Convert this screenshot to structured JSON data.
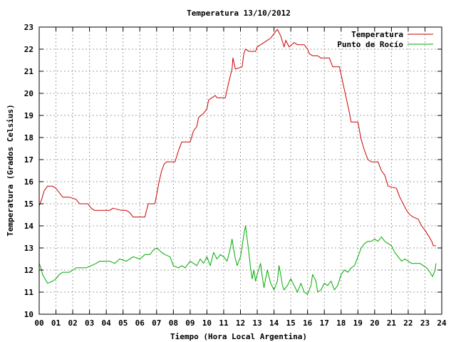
{
  "chart_data": {
    "type": "line",
    "title": "Temperatura 13/10/2012",
    "xlabel": "Tiempo (Hora Local Argentina)",
    "ylabel": "Temperatura (Grados Celsius)",
    "xlim": [
      0,
      24
    ],
    "ylim": [
      10,
      23
    ],
    "x_ticks": [
      "00",
      "01",
      "02",
      "03",
      "04",
      "05",
      "06",
      "07",
      "08",
      "09",
      "10",
      "11",
      "12",
      "13",
      "14",
      "15",
      "16",
      "17",
      "18",
      "19",
      "20",
      "21",
      "22",
      "23",
      "24"
    ],
    "y_ticks": [
      "10",
      "11",
      "12",
      "13",
      "14",
      "15",
      "16",
      "17",
      "18",
      "19",
      "20",
      "21",
      "22",
      "23"
    ],
    "grid": true,
    "legend_position": "top-right",
    "series": [
      {
        "name": "Temperatura",
        "color": "#cc0000",
        "points": [
          [
            0.0,
            14.9
          ],
          [
            0.15,
            15.2
          ],
          [
            0.3,
            15.6
          ],
          [
            0.5,
            15.8
          ],
          [
            0.8,
            15.8
          ],
          [
            1.0,
            15.7
          ],
          [
            1.2,
            15.5
          ],
          [
            1.4,
            15.3
          ],
          [
            1.8,
            15.3
          ],
          [
            2.2,
            15.2
          ],
          [
            2.4,
            15.0
          ],
          [
            2.9,
            15.0
          ],
          [
            3.1,
            14.8
          ],
          [
            3.3,
            14.7
          ],
          [
            3.9,
            14.7
          ],
          [
            4.2,
            14.7
          ],
          [
            4.4,
            14.8
          ],
          [
            4.9,
            14.7
          ],
          [
            5.2,
            14.7
          ],
          [
            5.4,
            14.6
          ],
          [
            5.6,
            14.4
          ],
          [
            6.0,
            14.4
          ],
          [
            6.3,
            14.4
          ],
          [
            6.4,
            14.7
          ],
          [
            6.5,
            15.0
          ],
          [
            6.9,
            15.0
          ],
          [
            7.0,
            15.4
          ],
          [
            7.15,
            16.0
          ],
          [
            7.3,
            16.5
          ],
          [
            7.45,
            16.8
          ],
          [
            7.6,
            16.9
          ],
          [
            8.1,
            16.9
          ],
          [
            8.3,
            17.4
          ],
          [
            8.5,
            17.8
          ],
          [
            9.0,
            17.8
          ],
          [
            9.2,
            18.3
          ],
          [
            9.4,
            18.5
          ],
          [
            9.5,
            18.9
          ],
          [
            9.8,
            19.1
          ],
          [
            10.0,
            19.3
          ],
          [
            10.1,
            19.7
          ],
          [
            10.3,
            19.8
          ],
          [
            10.5,
            19.9
          ],
          [
            10.6,
            19.8
          ],
          [
            11.1,
            19.8
          ],
          [
            11.3,
            20.5
          ],
          [
            11.5,
            21.1
          ],
          [
            11.55,
            21.6
          ],
          [
            11.7,
            21.1
          ],
          [
            12.1,
            21.2
          ],
          [
            12.2,
            21.8
          ],
          [
            12.3,
            22.0
          ],
          [
            12.5,
            21.9
          ],
          [
            12.9,
            21.9
          ],
          [
            13.0,
            22.1
          ],
          [
            13.2,
            22.2
          ],
          [
            13.4,
            22.3
          ],
          [
            13.6,
            22.4
          ],
          [
            13.8,
            22.5
          ],
          [
            14.0,
            22.7
          ],
          [
            14.2,
            22.9
          ],
          [
            14.4,
            22.6
          ],
          [
            14.6,
            22.1
          ],
          [
            14.7,
            22.4
          ],
          [
            14.9,
            22.1
          ],
          [
            15.2,
            22.3
          ],
          [
            15.4,
            22.2
          ],
          [
            15.8,
            22.2
          ],
          [
            16.0,
            22.0
          ],
          [
            16.1,
            21.8
          ],
          [
            16.3,
            21.7
          ],
          [
            16.6,
            21.7
          ],
          [
            16.8,
            21.6
          ],
          [
            17.3,
            21.6
          ],
          [
            17.5,
            21.2
          ],
          [
            17.9,
            21.2
          ],
          [
            18.1,
            20.5
          ],
          [
            18.3,
            19.8
          ],
          [
            18.5,
            19.1
          ],
          [
            18.6,
            18.7
          ],
          [
            19.0,
            18.7
          ],
          [
            19.2,
            17.9
          ],
          [
            19.4,
            17.4
          ],
          [
            19.6,
            17.0
          ],
          [
            19.8,
            16.9
          ],
          [
            20.2,
            16.9
          ],
          [
            20.4,
            16.5
          ],
          [
            20.6,
            16.3
          ],
          [
            20.8,
            15.8
          ],
          [
            21.3,
            15.7
          ],
          [
            21.5,
            15.3
          ],
          [
            21.7,
            15.0
          ],
          [
            21.9,
            14.7
          ],
          [
            22.1,
            14.5
          ],
          [
            22.3,
            14.4
          ],
          [
            22.6,
            14.3
          ],
          [
            22.8,
            14.0
          ],
          [
            22.9,
            13.9
          ],
          [
            23.0,
            13.8
          ],
          [
            23.25,
            13.5
          ],
          [
            23.4,
            13.3
          ],
          [
            23.5,
            13.1
          ],
          [
            23.65,
            13.1
          ]
        ]
      },
      {
        "name": "Punto de Rocío",
        "color": "#00aa00",
        "points": [
          [
            0.0,
            12.3
          ],
          [
            0.1,
            12.1
          ],
          [
            0.2,
            11.8
          ],
          [
            0.35,
            11.6
          ],
          [
            0.5,
            11.4
          ],
          [
            0.8,
            11.5
          ],
          [
            1.0,
            11.6
          ],
          [
            1.2,
            11.8
          ],
          [
            1.4,
            11.9
          ],
          [
            1.8,
            11.9
          ],
          [
            2.0,
            12.0
          ],
          [
            2.2,
            12.1
          ],
          [
            2.8,
            12.1
          ],
          [
            3.1,
            12.2
          ],
          [
            3.4,
            12.3
          ],
          [
            3.6,
            12.4
          ],
          [
            4.2,
            12.4
          ],
          [
            4.5,
            12.3
          ],
          [
            4.8,
            12.5
          ],
          [
            5.2,
            12.4
          ],
          [
            5.6,
            12.6
          ],
          [
            6.0,
            12.5
          ],
          [
            6.3,
            12.7
          ],
          [
            6.6,
            12.7
          ],
          [
            6.8,
            12.9
          ],
          [
            7.0,
            13.0
          ],
          [
            7.3,
            12.8
          ],
          [
            7.5,
            12.7
          ],
          [
            7.8,
            12.6
          ],
          [
            8.0,
            12.2
          ],
          [
            8.3,
            12.1
          ],
          [
            8.5,
            12.2
          ],
          [
            8.7,
            12.1
          ],
          [
            9.0,
            12.4
          ],
          [
            9.2,
            12.3
          ],
          [
            9.4,
            12.2
          ],
          [
            9.6,
            12.5
          ],
          [
            9.8,
            12.3
          ],
          [
            10.0,
            12.6
          ],
          [
            10.2,
            12.2
          ],
          [
            10.4,
            12.8
          ],
          [
            10.6,
            12.5
          ],
          [
            10.8,
            12.7
          ],
          [
            11.0,
            12.6
          ],
          [
            11.2,
            12.4
          ],
          [
            11.4,
            13.0
          ],
          [
            11.5,
            13.4
          ],
          [
            11.6,
            12.9
          ],
          [
            11.7,
            12.5
          ],
          [
            11.8,
            12.2
          ],
          [
            12.0,
            12.6
          ],
          [
            12.1,
            13.1
          ],
          [
            12.2,
            13.6
          ],
          [
            12.3,
            14.0
          ],
          [
            12.4,
            13.4
          ],
          [
            12.5,
            12.8
          ],
          [
            12.6,
            12.1
          ],
          [
            12.7,
            11.6
          ],
          [
            12.8,
            12.0
          ],
          [
            12.9,
            11.5
          ],
          [
            13.0,
            11.8
          ],
          [
            13.2,
            12.3
          ],
          [
            13.3,
            11.7
          ],
          [
            13.4,
            11.2
          ],
          [
            13.5,
            11.6
          ],
          [
            13.6,
            12.0
          ],
          [
            13.8,
            11.4
          ],
          [
            14.0,
            11.1
          ],
          [
            14.2,
            11.5
          ],
          [
            14.3,
            12.2
          ],
          [
            14.4,
            11.8
          ],
          [
            14.5,
            11.3
          ],
          [
            14.6,
            11.1
          ],
          [
            14.8,
            11.3
          ],
          [
            15.0,
            11.6
          ],
          [
            15.2,
            11.3
          ],
          [
            15.4,
            11.0
          ],
          [
            15.6,
            11.4
          ],
          [
            15.8,
            11.0
          ],
          [
            16.0,
            10.9
          ],
          [
            16.2,
            11.3
          ],
          [
            16.3,
            11.8
          ],
          [
            16.5,
            11.5
          ],
          [
            16.6,
            11.0
          ],
          [
            16.8,
            11.1
          ],
          [
            17.0,
            11.4
          ],
          [
            17.2,
            11.3
          ],
          [
            17.4,
            11.5
          ],
          [
            17.6,
            11.1
          ],
          [
            17.8,
            11.3
          ],
          [
            18.0,
            11.8
          ],
          [
            18.2,
            12.0
          ],
          [
            18.4,
            11.9
          ],
          [
            18.6,
            12.1
          ],
          [
            18.8,
            12.2
          ],
          [
            19.0,
            12.6
          ],
          [
            19.2,
            13.0
          ],
          [
            19.4,
            13.2
          ],
          [
            19.6,
            13.3
          ],
          [
            19.8,
            13.3
          ],
          [
            20.0,
            13.4
          ],
          [
            20.2,
            13.3
          ],
          [
            20.4,
            13.5
          ],
          [
            20.6,
            13.3
          ],
          [
            20.8,
            13.2
          ],
          [
            21.0,
            13.1
          ],
          [
            21.2,
            12.8
          ],
          [
            21.4,
            12.6
          ],
          [
            21.6,
            12.4
          ],
          [
            21.8,
            12.5
          ],
          [
            22.0,
            12.4
          ],
          [
            22.2,
            12.3
          ],
          [
            22.5,
            12.3
          ],
          [
            22.7,
            12.3
          ],
          [
            22.9,
            12.2
          ],
          [
            23.1,
            12.1
          ],
          [
            23.3,
            11.9
          ],
          [
            23.45,
            11.7
          ],
          [
            23.6,
            12.0
          ],
          [
            23.65,
            12.3
          ]
        ]
      }
    ]
  }
}
